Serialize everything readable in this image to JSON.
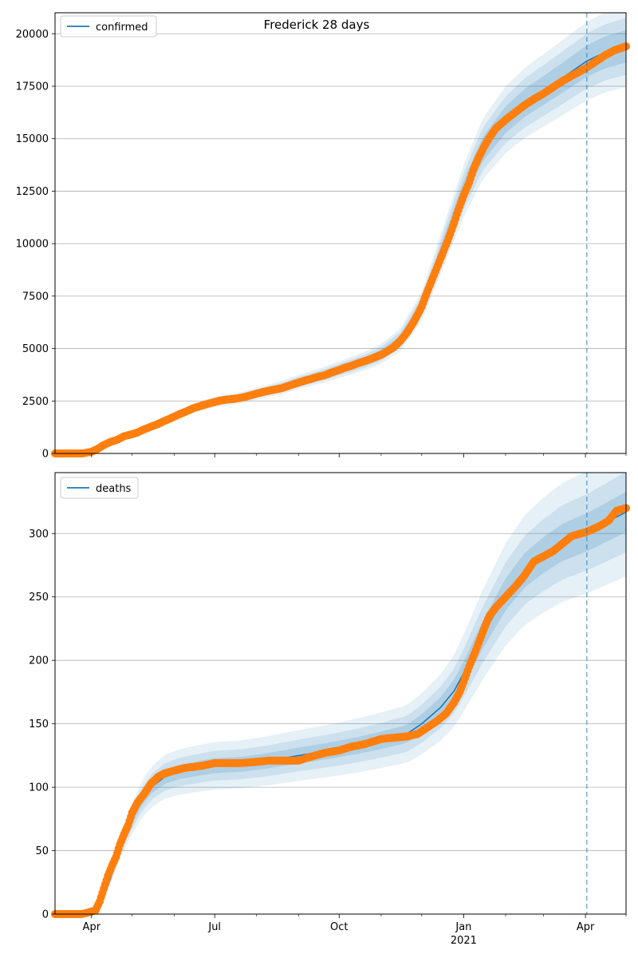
{
  "title": "Frederick 28 days",
  "colors": {
    "model_line": "#1f77b4",
    "observed_points": "#ff7f0e",
    "band": "#1f77b4",
    "grid": "#b0b0b0",
    "forecast_marker": "#1f77b4"
  },
  "x_axis": {
    "ticks": [
      {
        "date": "2020-04-01",
        "label": "Apr",
        "sublabel": ""
      },
      {
        "date": "2020-07-01",
        "label": "Jul",
        "sublabel": ""
      },
      {
        "date": "2020-10-01",
        "label": "Oct",
        "sublabel": ""
      },
      {
        "date": "2021-01-01",
        "label": "Jan",
        "sublabel": "2021"
      },
      {
        "date": "2021-04-01",
        "label": "Apr",
        "sublabel": ""
      }
    ],
    "minor_ticks": [
      "2020-05-01",
      "2020-06-01",
      "2020-08-01",
      "2020-09-01",
      "2020-11-01",
      "2020-12-01",
      "2021-02-01",
      "2021-03-01",
      "2021-05-01"
    ],
    "xlim": [
      "2020-03-05",
      "2021-05-01"
    ]
  },
  "forecast_start": "2021-04-02",
  "chart_data": [
    {
      "type": "line",
      "title": "Frederick 28 days",
      "legend": {
        "label": "confirmed",
        "placement": "top-left"
      },
      "grid": "y",
      "ylim": [
        0,
        21000
      ],
      "yticks": [
        0,
        2500,
        5000,
        7500,
        10000,
        12500,
        15000,
        17500,
        20000
      ],
      "model_series": {
        "name": "confirmed",
        "points": [
          [
            "2020-03-05",
            0
          ],
          [
            "2020-03-25",
            0
          ],
          [
            "2020-04-01",
            60
          ],
          [
            "2020-04-10",
            350
          ],
          [
            "2020-04-20",
            650
          ],
          [
            "2020-05-01",
            900
          ],
          [
            "2020-05-15",
            1300
          ],
          [
            "2020-06-01",
            1800
          ],
          [
            "2020-06-15",
            2150
          ],
          [
            "2020-07-01",
            2450
          ],
          [
            "2020-07-20",
            2650
          ],
          [
            "2020-08-01",
            2850
          ],
          [
            "2020-08-20",
            3150
          ],
          [
            "2020-09-01",
            3400
          ],
          [
            "2020-09-20",
            3750
          ],
          [
            "2020-10-01",
            4000
          ],
          [
            "2020-10-20",
            4400
          ],
          [
            "2020-11-01",
            4750
          ],
          [
            "2020-11-15",
            5400
          ],
          [
            "2020-12-01",
            7000
          ],
          [
            "2020-12-15",
            9500
          ],
          [
            "2021-01-01",
            12500
          ],
          [
            "2021-01-15",
            14500
          ],
          [
            "2021-02-01",
            15900
          ],
          [
            "2021-02-15",
            16700
          ],
          [
            "2021-03-01",
            17300
          ],
          [
            "2021-03-15",
            17900
          ],
          [
            "2021-04-02",
            18700
          ],
          [
            "2021-04-15",
            19100
          ],
          [
            "2021-05-01",
            19400
          ]
        ]
      },
      "band_halfwidths": [
        0.04,
        0.07,
        0.1
      ],
      "observed_series": {
        "name": "observed",
        "points": [
          [
            "2020-03-05",
            0
          ],
          [
            "2020-03-15",
            0
          ],
          [
            "2020-03-25",
            0
          ],
          [
            "2020-04-01",
            80
          ],
          [
            "2020-04-05",
            200
          ],
          [
            "2020-04-10",
            400
          ],
          [
            "2020-04-15",
            550
          ],
          [
            "2020-04-20",
            650
          ],
          [
            "2020-04-25",
            820
          ],
          [
            "2020-05-01",
            920
          ],
          [
            "2020-05-05",
            1000
          ],
          [
            "2020-05-10",
            1150
          ],
          [
            "2020-05-15",
            1280
          ],
          [
            "2020-05-20",
            1400
          ],
          [
            "2020-05-25",
            1550
          ],
          [
            "2020-06-01",
            1750
          ],
          [
            "2020-06-05",
            1870
          ],
          [
            "2020-06-10",
            2000
          ],
          [
            "2020-06-15",
            2150
          ],
          [
            "2020-06-20",
            2250
          ],
          [
            "2020-06-25",
            2350
          ],
          [
            "2020-07-01",
            2450
          ],
          [
            "2020-07-05",
            2520
          ],
          [
            "2020-07-10",
            2570
          ],
          [
            "2020-07-15",
            2600
          ],
          [
            "2020-07-20",
            2650
          ],
          [
            "2020-07-25",
            2720
          ],
          [
            "2020-08-01",
            2850
          ],
          [
            "2020-08-05",
            2920
          ],
          [
            "2020-08-10",
            2990
          ],
          [
            "2020-08-15",
            3050
          ],
          [
            "2020-08-20",
            3120
          ],
          [
            "2020-08-25",
            3230
          ],
          [
            "2020-09-01",
            3380
          ],
          [
            "2020-09-05",
            3460
          ],
          [
            "2020-09-10",
            3550
          ],
          [
            "2020-09-15",
            3650
          ],
          [
            "2020-09-20",
            3720
          ],
          [
            "2020-09-25",
            3850
          ],
          [
            "2020-10-01",
            3980
          ],
          [
            "2020-10-05",
            4080
          ],
          [
            "2020-10-10",
            4180
          ],
          [
            "2020-10-15",
            4300
          ],
          [
            "2020-10-20",
            4400
          ],
          [
            "2020-10-25",
            4520
          ],
          [
            "2020-11-01",
            4700
          ],
          [
            "2020-11-05",
            4850
          ],
          [
            "2020-11-10",
            5050
          ],
          [
            "2020-11-15",
            5350
          ],
          [
            "2020-11-20",
            5750
          ],
          [
            "2020-11-25",
            6250
          ],
          [
            "2020-12-01",
            7000
          ],
          [
            "2020-12-05",
            7700
          ],
          [
            "2020-12-10",
            8500
          ],
          [
            "2020-12-15",
            9300
          ],
          [
            "2020-12-20",
            10100
          ],
          [
            "2020-12-25",
            11000
          ],
          [
            "2020-12-28",
            11600
          ],
          [
            "2021-01-01",
            12300
          ],
          [
            "2021-01-05",
            12900
          ],
          [
            "2021-01-08",
            13500
          ],
          [
            "2021-01-12",
            14100
          ],
          [
            "2021-01-16",
            14600
          ],
          [
            "2021-01-20",
            15050
          ],
          [
            "2021-01-25",
            15500
          ],
          [
            "2021-02-01",
            15900
          ],
          [
            "2021-02-07",
            16200
          ],
          [
            "2021-02-14",
            16550
          ],
          [
            "2021-02-21",
            16850
          ],
          [
            "2021-03-01",
            17150
          ],
          [
            "2021-03-08",
            17450
          ],
          [
            "2021-03-15",
            17750
          ],
          [
            "2021-03-22",
            18000
          ],
          [
            "2021-04-01",
            18350
          ],
          [
            "2021-04-08",
            18650
          ],
          [
            "2021-04-15",
            18950
          ],
          [
            "2021-04-22",
            19200
          ],
          [
            "2021-05-01",
            19400
          ]
        ]
      }
    },
    {
      "type": "line",
      "title": "",
      "legend": {
        "label": "deaths",
        "placement": "top-left"
      },
      "grid": "y",
      "ylim": [
        0,
        348
      ],
      "yticks": [
        0,
        50,
        100,
        150,
        200,
        250,
        300
      ],
      "model_series": {
        "name": "deaths",
        "points": [
          [
            "2020-03-05",
            0
          ],
          [
            "2020-03-25",
            0
          ],
          [
            "2020-04-01",
            1
          ],
          [
            "2020-04-08",
            8
          ],
          [
            "2020-04-15",
            28
          ],
          [
            "2020-04-22",
            52
          ],
          [
            "2020-05-01",
            75
          ],
          [
            "2020-05-08",
            90
          ],
          [
            "2020-05-15",
            100
          ],
          [
            "2020-05-25",
            108
          ],
          [
            "2020-06-05",
            112
          ],
          [
            "2020-06-20",
            115
          ],
          [
            "2020-07-01",
            117
          ],
          [
            "2020-07-20",
            118
          ],
          [
            "2020-08-10",
            121
          ],
          [
            "2020-09-01",
            125
          ],
          [
            "2020-09-25",
            129
          ],
          [
            "2020-10-15",
            133
          ],
          [
            "2020-11-01",
            137
          ],
          [
            "2020-11-20",
            142
          ],
          [
            "2020-12-01",
            150
          ],
          [
            "2020-12-15",
            163
          ],
          [
            "2020-12-25",
            176
          ],
          [
            "2021-01-01",
            190
          ],
          [
            "2021-01-15",
            220
          ],
          [
            "2021-02-01",
            252
          ],
          [
            "2021-02-15",
            271
          ],
          [
            "2021-03-01",
            283
          ],
          [
            "2021-03-15",
            293
          ],
          [
            "2021-04-02",
            301
          ],
          [
            "2021-04-15",
            308
          ],
          [
            "2021-05-01",
            317
          ]
        ]
      },
      "band_halfwidths": [
        0.05,
        0.1,
        0.16
      ],
      "observed_series": {
        "name": "observed",
        "points": [
          [
            "2020-03-05",
            0
          ],
          [
            "2020-03-15",
            0
          ],
          [
            "2020-03-25",
            0
          ],
          [
            "2020-04-01",
            2
          ],
          [
            "2020-04-04",
            3
          ],
          [
            "2020-04-07",
            10
          ],
          [
            "2020-04-10",
            20
          ],
          [
            "2020-04-13",
            30
          ],
          [
            "2020-04-16",
            38
          ],
          [
            "2020-04-19",
            45
          ],
          [
            "2020-04-22",
            55
          ],
          [
            "2020-04-25",
            63
          ],
          [
            "2020-04-28",
            70
          ],
          [
            "2020-05-01",
            80
          ],
          [
            "2020-05-05",
            88
          ],
          [
            "2020-05-10",
            95
          ],
          [
            "2020-05-15",
            103
          ],
          [
            "2020-05-20",
            108
          ],
          [
            "2020-05-25",
            111
          ],
          [
            "2020-06-01",
            113
          ],
          [
            "2020-06-08",
            115
          ],
          [
            "2020-06-15",
            116
          ],
          [
            "2020-06-22",
            117
          ],
          [
            "2020-07-01",
            119
          ],
          [
            "2020-07-10",
            119
          ],
          [
            "2020-07-20",
            119
          ],
          [
            "2020-08-01",
            120
          ],
          [
            "2020-08-10",
            121
          ],
          [
            "2020-08-20",
            121
          ],
          [
            "2020-09-01",
            121
          ],
          [
            "2020-09-10",
            124
          ],
          [
            "2020-09-20",
            127
          ],
          [
            "2020-10-01",
            129
          ],
          [
            "2020-10-10",
            132
          ],
          [
            "2020-10-20",
            134
          ],
          [
            "2020-11-01",
            138
          ],
          [
            "2020-11-10",
            139
          ],
          [
            "2020-11-20",
            140
          ],
          [
            "2020-11-28",
            142
          ],
          [
            "2020-12-05",
            147
          ],
          [
            "2020-12-12",
            152
          ],
          [
            "2020-12-19",
            158
          ],
          [
            "2020-12-25",
            167
          ],
          [
            "2020-12-29",
            175
          ],
          [
            "2021-01-01",
            183
          ],
          [
            "2021-01-05",
            195
          ],
          [
            "2021-01-10",
            208
          ],
          [
            "2021-01-15",
            222
          ],
          [
            "2021-01-20",
            235
          ],
          [
            "2021-01-25",
            242
          ],
          [
            "2021-02-01",
            250
          ],
          [
            "2021-02-08",
            258
          ],
          [
            "2021-02-15",
            267
          ],
          [
            "2021-02-22",
            278
          ],
          [
            "2021-03-01",
            282
          ],
          [
            "2021-03-08",
            286
          ],
          [
            "2021-03-15",
            292
          ],
          [
            "2021-03-22",
            298
          ],
          [
            "2021-04-01",
            301
          ],
          [
            "2021-04-10",
            305
          ],
          [
            "2021-04-18",
            310
          ],
          [
            "2021-04-24",
            318
          ],
          [
            "2021-05-01",
            320
          ]
        ]
      }
    }
  ]
}
